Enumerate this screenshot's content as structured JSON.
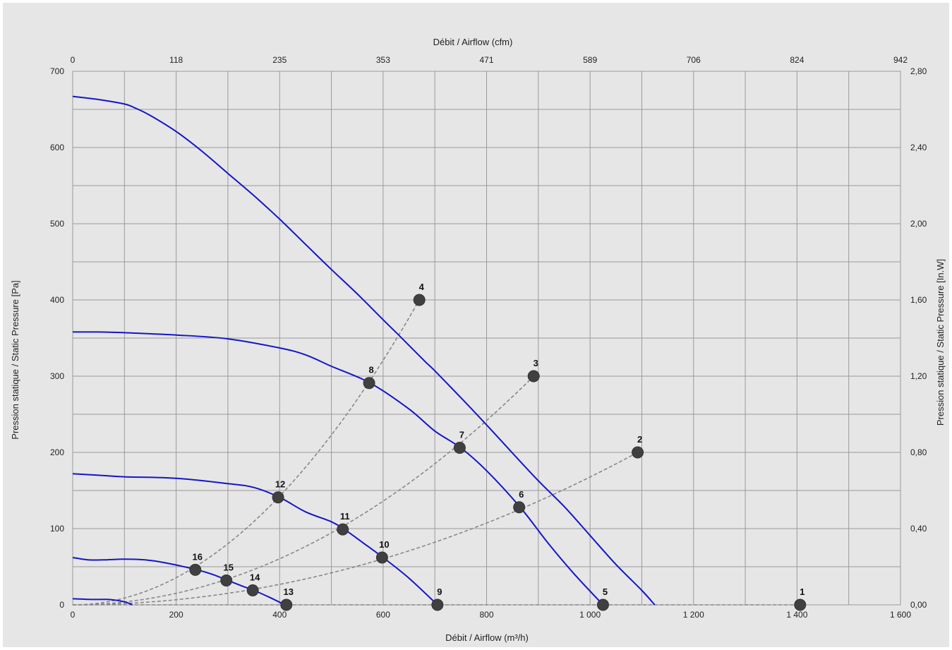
{
  "chart_data": {
    "type": "line",
    "x_axis_bottom": {
      "label": "Débit / Airflow (m³/h)",
      "range": [
        0,
        1600
      ],
      "ticks": [
        0,
        200,
        400,
        600,
        800,
        1000,
        1200,
        1400,
        1600
      ],
      "tick_labels": [
        "0",
        "200",
        "400",
        "600",
        "800",
        "1 000",
        "1 200",
        "1 400",
        "1 600"
      ]
    },
    "x_axis_top": {
      "label": "Débit / Airflow (cfm)",
      "tick_labels": [
        "0",
        "118",
        "235",
        "353",
        "471",
        "589",
        "706",
        "824",
        "942"
      ]
    },
    "y_axis_left": {
      "label": "Pression statique / Static Pressure [Pa]",
      "range": [
        0,
        700
      ],
      "ticks": [
        0,
        100,
        200,
        300,
        400,
        500,
        600,
        700
      ],
      "tick_labels": [
        "0",
        "100",
        "200",
        "300",
        "400",
        "500",
        "600",
        "700"
      ]
    },
    "y_axis_right": {
      "label": "Pression statique / Static Pressure [In.W]",
      "tick_labels": [
        "0,00",
        "0,40",
        "0,80",
        "1,20",
        "1,60",
        "2,00",
        "2,40",
        "2,80"
      ]
    },
    "grid": true,
    "fan_curve_color": "#1515c8",
    "system_curve_color": "#888888",
    "point_color": "#404040",
    "fan_curves": [
      {
        "points": [
          [
            0,
            667
          ],
          [
            50,
            663
          ],
          [
            100,
            657
          ],
          [
            120,
            652
          ],
          [
            150,
            642
          ],
          [
            200,
            621
          ],
          [
            250,
            595
          ],
          [
            300,
            566
          ],
          [
            350,
            537
          ],
          [
            400,
            506
          ],
          [
            450,
            473
          ],
          [
            500,
            440
          ],
          [
            550,
            408
          ],
          [
            600,
            374
          ],
          [
            630,
            354
          ],
          [
            680,
            320
          ],
          [
            700,
            307
          ],
          [
            750,
            272
          ],
          [
            800,
            236
          ],
          [
            894,
            167
          ],
          [
            950,
            129
          ],
          [
            1000,
            91
          ],
          [
            1050,
            53
          ],
          [
            1100,
            19
          ],
          [
            1125,
            0
          ]
        ]
      },
      {
        "points": [
          [
            0,
            358
          ],
          [
            50,
            358
          ],
          [
            100,
            357
          ],
          [
            200,
            354
          ],
          [
            300,
            349
          ],
          [
            400,
            337
          ],
          [
            450,
            328
          ],
          [
            500,
            313
          ],
          [
            575,
            291
          ],
          [
            650,
            257
          ],
          [
            700,
            228
          ],
          [
            750,
            206
          ],
          [
            800,
            176
          ],
          [
            865,
            128
          ],
          [
            920,
            80
          ],
          [
            970,
            40
          ],
          [
            1025,
            0
          ]
        ]
      },
      {
        "points": [
          [
            0,
            172
          ],
          [
            50,
            170
          ],
          [
            100,
            168
          ],
          [
            200,
            166
          ],
          [
            300,
            159
          ],
          [
            350,
            154
          ],
          [
            400,
            141
          ],
          [
            450,
            122
          ],
          [
            500,
            109
          ],
          [
            525,
            99
          ],
          [
            560,
            82
          ],
          [
            600,
            62
          ],
          [
            650,
            35
          ],
          [
            705,
            0
          ]
        ]
      },
      {
        "points": [
          [
            0,
            62
          ],
          [
            30,
            59
          ],
          [
            60,
            59
          ],
          [
            100,
            60
          ],
          [
            140,
            59
          ],
          [
            180,
            55
          ],
          [
            240,
            46
          ],
          [
            270,
            40
          ],
          [
            300,
            32
          ],
          [
            330,
            24
          ],
          [
            350,
            19
          ],
          [
            380,
            10
          ],
          [
            410,
            0
          ]
        ]
      },
      {
        "points": [
          [
            0,
            8
          ],
          [
            40,
            7
          ],
          [
            70,
            7
          ],
          [
            100,
            4
          ],
          [
            115,
            0
          ]
        ]
      }
    ],
    "system_curves": [
      {
        "k": 0.00035
      },
      {
        "k": 0.00013
      },
      {
        "k": 0.000375
      },
      {
        "k": 0.000881
      },
      {
        "k": 0.000173
      },
      {
        "k": 0.0
      },
      {
        "k": 0.000368
      },
      {
        "k": 0.000171
      }
    ],
    "operating_points": [
      {
        "label": "1",
        "x": 1406,
        "y": 0
      },
      {
        "label": "2",
        "x": 1092,
        "y": 200
      },
      {
        "label": "3",
        "x": 891,
        "y": 300
      },
      {
        "label": "4",
        "x": 670,
        "y": 400
      },
      {
        "label": "5",
        "x": 1025,
        "y": 0
      },
      {
        "label": "6",
        "x": 863,
        "y": 128
      },
      {
        "label": "7",
        "x": 748,
        "y": 206
      },
      {
        "label": "8",
        "x": 573,
        "y": 291
      },
      {
        "label": "9",
        "x": 705,
        "y": 0
      },
      {
        "label": "10",
        "x": 598,
        "y": 62
      },
      {
        "label": "11",
        "x": 522,
        "y": 99
      },
      {
        "label": "12",
        "x": 397,
        "y": 141
      },
      {
        "label": "13",
        "x": 413,
        "y": 0
      },
      {
        "label": "14",
        "x": 348,
        "y": 19
      },
      {
        "label": "15",
        "x": 297,
        "y": 32
      },
      {
        "label": "16",
        "x": 237,
        "y": 46
      }
    ],
    "system_curve_series": [
      {
        "through": [
          [
            0,
            0
          ],
          [
            237,
            46
          ],
          [
            397,
            141
          ],
          [
            573,
            291
          ],
          [
            670,
            400
          ]
        ]
      },
      {
        "through": [
          [
            0,
            0
          ],
          [
            297,
            32
          ],
          [
            522,
            99
          ],
          [
            748,
            206
          ],
          [
            891,
            300
          ]
        ]
      },
      {
        "through": [
          [
            0,
            0
          ],
          [
            348,
            19
          ],
          [
            598,
            62
          ],
          [
            863,
            128
          ],
          [
            1092,
            200
          ]
        ]
      },
      {
        "through": [
          [
            0,
            0
          ],
          [
            413,
            0
          ],
          [
            705,
            0
          ],
          [
            1025,
            0
          ],
          [
            1406,
            0
          ]
        ]
      }
    ]
  }
}
